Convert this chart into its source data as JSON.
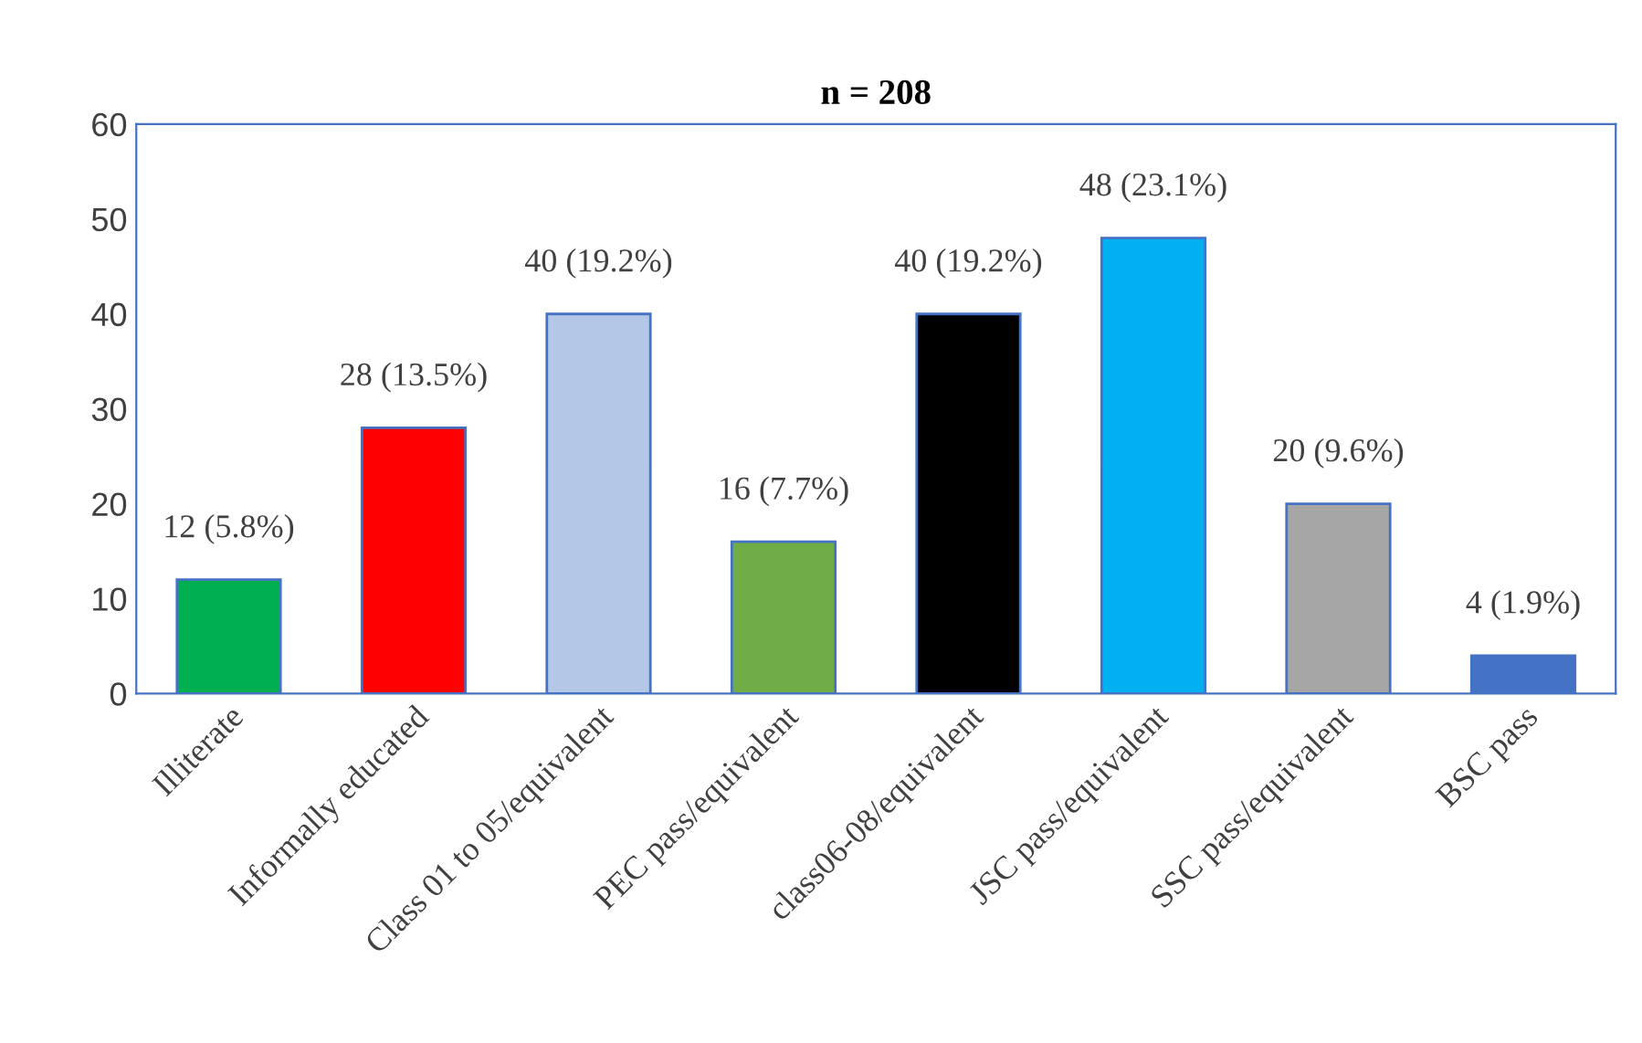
{
  "chart_data": {
    "type": "bar",
    "title": "n = 208",
    "categories": [
      "Illiterate",
      "Informally educated",
      "Class 01 to 05/equivalent",
      "PEC pass/equivalent",
      "class06-08/equivalent",
      "JSC pass/equivalent",
      "SSC pass/equivalent",
      "BSC pass"
    ],
    "values": [
      12,
      28,
      40,
      16,
      40,
      48,
      20,
      4
    ],
    "colors": [
      "#00b050",
      "#ff0000",
      "#b4c7e7",
      "#70ad47",
      "#000000",
      "#00b0f0",
      "#a6a6a6",
      "#4472c4"
    ],
    "value_labels": [
      "12 (5.8%)",
      "28 (13.5%)",
      "40 (19.2%)",
      "16 (7.7%)",
      "40 (19.2%)",
      "48 (23.1%)",
      "20 (9.6%)",
      "4 (1.9%)"
    ],
    "ylim": [
      0,
      60
    ],
    "yticks": [
      0,
      10,
      20,
      30,
      40,
      50,
      60
    ],
    "grid": false,
    "legend": false
  }
}
